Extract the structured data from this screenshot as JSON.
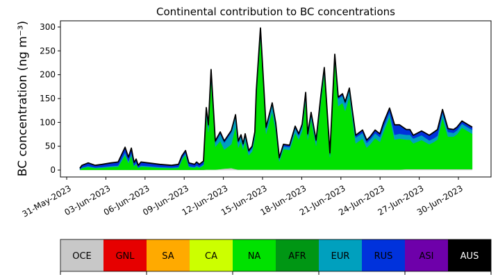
{
  "chart_data": {
    "type": "area",
    "title": "Continental contribution to BC concentrations",
    "ylabel": "BC concentration (ng m⁻³)",
    "xlabel": "",
    "xlim_days_since_31_may_2023": [
      -0.48,
      32.5
    ],
    "ylim": [
      -14.5,
      313
    ],
    "yticks": [
      0,
      50,
      100,
      150,
      200,
      250,
      300
    ],
    "xticks": [
      {
        "day": 0,
        "label": "31-May-2023"
      },
      {
        "day": 3,
        "label": "03-Jun-2023"
      },
      {
        "day": 6,
        "label": "06-Jun-2023"
      },
      {
        "day": 9,
        "label": "09-Jun-2023"
      },
      {
        "day": 12,
        "label": "12-Jun-2023"
      },
      {
        "day": 15,
        "label": "15-Jun-2023"
      },
      {
        "day": 18,
        "label": "18-Jun-2023"
      },
      {
        "day": 21,
        "label": "21-Jun-2023"
      },
      {
        "day": 24,
        "label": "24-Jun-2023"
      },
      {
        "day": 27,
        "label": "27-Jun-2023"
      },
      {
        "day": 30,
        "label": "30-Jun-2023"
      }
    ],
    "legend": [
      {
        "name": "OCE",
        "color": "#c8c8c8",
        "text_color": "#000000"
      },
      {
        "name": "GNL",
        "color": "#e60000",
        "text_color": "#000000"
      },
      {
        "name": "SA",
        "color": "#ffaa00",
        "text_color": "#000000"
      },
      {
        "name": "CA",
        "color": "#ccff00",
        "text_color": "#000000"
      },
      {
        "name": "NA",
        "color": "#00e100",
        "text_color": "#000000"
      },
      {
        "name": "AFR",
        "color": "#009614",
        "text_color": "#000000"
      },
      {
        "name": "EUR",
        "color": "#00a0be",
        "text_color": "#000000"
      },
      {
        "name": "RUS",
        "color": "#0032dc",
        "text_color": "#000000"
      },
      {
        "name": "ASI",
        "color": "#6e00aa",
        "text_color": "#000000"
      },
      {
        "name": "AUS",
        "color": "#000000",
        "text_color": "#ffffff"
      }
    ],
    "legend_placement": "bottom colorbar",
    "row_columns": [
      "day",
      "OCE",
      "NA",
      "EUR",
      "RUS",
      "ASI"
    ],
    "rows": [
      [
        1.01,
        0.5,
        0.5,
        1,
        2,
        0
      ],
      [
        1.17,
        0.5,
        3.5,
        1.5,
        4,
        0.5
      ],
      [
        1.65,
        0.5,
        6,
        2,
        6,
        0.5
      ],
      [
        2.18,
        0.5,
        3.5,
        1.5,
        4,
        0.5
      ],
      [
        2.71,
        0.5,
        4,
        2,
        5,
        0.5
      ],
      [
        3.4,
        0.5,
        6,
        2,
        6,
        0.5
      ],
      [
        3.94,
        0.5,
        6.5,
        2.5,
        7,
        0.5
      ],
      [
        4.47,
        0.5,
        30.5,
        6,
        10,
        1
      ],
      [
        4.73,
        0.5,
        14,
        4,
        8,
        0.5
      ],
      [
        4.95,
        0.5,
        29.5,
        6,
        9,
        1
      ],
      [
        5.16,
        0.5,
        7,
        2,
        6,
        0.5
      ],
      [
        5.32,
        0.5,
        12,
        3,
        7,
        0.5
      ],
      [
        5.48,
        0.5,
        3.5,
        1.5,
        4,
        0.5
      ],
      [
        5.69,
        0.5,
        6.5,
        2.5,
        7,
        0.5
      ],
      [
        6.22,
        0.5,
        6,
        2,
        6,
        0.5
      ],
      [
        7.13,
        0.5,
        4,
        2,
        5,
        0.5
      ],
      [
        8.03,
        0.5,
        3.5,
        1.5,
        4,
        0.5
      ],
      [
        8.56,
        0.5,
        4,
        2,
        5,
        0.5
      ],
      [
        8.83,
        0.5,
        21,
        3,
        5,
        0.5
      ],
      [
        9.1,
        0.5,
        31,
        4,
        5,
        0.5
      ],
      [
        9.36,
        0.5,
        6,
        2,
        6,
        0.5
      ],
      [
        9.79,
        0.5,
        4,
        2,
        5,
        0.5
      ],
      [
        9.95,
        0.5,
        6.5,
        2.5,
        7,
        0.5
      ],
      [
        10.16,
        0.5,
        4,
        2,
        5,
        0.5
      ],
      [
        10.48,
        0.5,
        9,
        3,
        6,
        0.5
      ],
      [
        10.69,
        1,
        113,
        12,
        4,
        1
      ],
      [
        10.85,
        1,
        79,
        10,
        4,
        1
      ],
      [
        11.06,
        1,
        189,
        15,
        5,
        1
      ],
      [
        11.38,
        1,
        48,
        8,
        3,
        1
      ],
      [
        11.76,
        2,
        59,
        15,
        3,
        1
      ],
      [
        12.07,
        3,
        40,
        14,
        3,
        1
      ],
      [
        12.61,
        4,
        50,
        25,
        3,
        1
      ],
      [
        12.93,
        2,
        90,
        20,
        3,
        1
      ],
      [
        13.14,
        1,
        46,
        10,
        3,
        1
      ],
      [
        13.35,
        1,
        59,
        10,
        3,
        1
      ],
      [
        13.51,
        1,
        42,
        8,
        3,
        1
      ],
      [
        13.67,
        1,
        61,
        10,
        3,
        1
      ],
      [
        13.94,
        1,
        30,
        6,
        3,
        1
      ],
      [
        14.2,
        1,
        38,
        7,
        3,
        1
      ],
      [
        14.41,
        1,
        66,
        8,
        4,
        1
      ],
      [
        14.52,
        1,
        151,
        10,
        4,
        1
      ],
      [
        14.84,
        1,
        280,
        12,
        4,
        1
      ],
      [
        15.27,
        1,
        75,
        10,
        3,
        1
      ],
      [
        15.74,
        1,
        121,
        15,
        3,
        1
      ],
      [
        16.01,
        1,
        82,
        12,
        3,
        1
      ],
      [
        16.28,
        1,
        17,
        4,
        3,
        1
      ],
      [
        16.6,
        1,
        43,
        6,
        3,
        1
      ],
      [
        17.07,
        1,
        41,
        6,
        3,
        1
      ],
      [
        17.5,
        1,
        77,
        10,
        3,
        1
      ],
      [
        17.77,
        1,
        63,
        8,
        3,
        1
      ],
      [
        18.03,
        1,
        81,
        10,
        3,
        1
      ],
      [
        18.3,
        1,
        146,
        12,
        3,
        1
      ],
      [
        18.46,
        1,
        63,
        8,
        3,
        1
      ],
      [
        18.72,
        1,
        106,
        10,
        3,
        1
      ],
      [
        19.1,
        1,
        50,
        8,
        3,
        1
      ],
      [
        19.47,
        1,
        142,
        10,
        3,
        1
      ],
      [
        19.73,
        1,
        200,
        10,
        3,
        1
      ],
      [
        20.16,
        1,
        26,
        5,
        3,
        1
      ],
      [
        20.53,
        1,
        228,
        10,
        3,
        1
      ],
      [
        20.8,
        1,
        133,
        15,
        3,
        1
      ],
      [
        21.12,
        1,
        140,
        15,
        3,
        1
      ],
      [
        21.33,
        1,
        123,
        15,
        3,
        1
      ],
      [
        21.65,
        1,
        152,
        15,
        3,
        1
      ],
      [
        22.13,
        1,
        55,
        12,
        4,
        1
      ],
      [
        22.66,
        1,
        65,
        12,
        5,
        1
      ],
      [
        22.98,
        1,
        46,
        10,
        5,
        1
      ],
      [
        23.24,
        1,
        53,
        10,
        5,
        1
      ],
      [
        23.62,
        1,
        66,
        10,
        6,
        1
      ],
      [
        23.99,
        1,
        58,
        10,
        6,
        1
      ],
      [
        24.26,
        1,
        79,
        10,
        8,
        1
      ],
      [
        24.73,
        1,
        110,
        10,
        8,
        1
      ],
      [
        25.11,
        1,
        63,
        10,
        20,
        1
      ],
      [
        25.48,
        1,
        65,
        10,
        18,
        1
      ],
      [
        26.01,
        2,
        62,
        10,
        10,
        1
      ],
      [
        26.28,
        2,
        62,
        10,
        10,
        1
      ],
      [
        26.54,
        2,
        54,
        10,
        6,
        1
      ],
      [
        27.18,
        2,
        61,
        10,
        8,
        1
      ],
      [
        27.77,
        2,
        52,
        8,
        10,
        1
      ],
      [
        28.14,
        2,
        57,
        8,
        12,
        1
      ],
      [
        28.4,
        2,
        62,
        8,
        12,
        1
      ],
      [
        28.78,
        2,
        108,
        10,
        6,
        1
      ],
      [
        29.2,
        2,
        68,
        10,
        6,
        1
      ],
      [
        29.63,
        2,
        68,
        8,
        6,
        1
      ],
      [
        29.89,
        2,
        73,
        8,
        6,
        1
      ],
      [
        30.27,
        2,
        87,
        8,
        5,
        1
      ],
      [
        30.69,
        2,
        80,
        8,
        5,
        1
      ],
      [
        31.06,
        2,
        74,
        8,
        5,
        1
      ]
    ]
  }
}
